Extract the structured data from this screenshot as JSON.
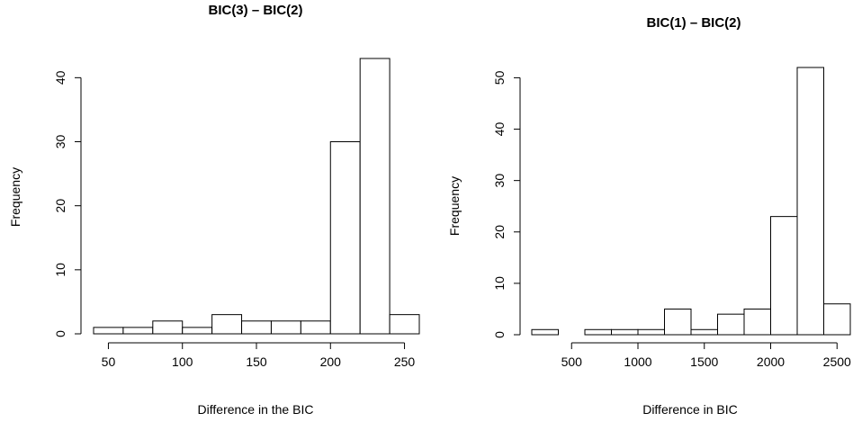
{
  "chart_data": [
    {
      "type": "bar",
      "title": "BIC(3) – BIC(2)",
      "xlabel": "Difference in the BIC",
      "ylabel": "Frequency",
      "bin_edges": [
        40,
        60,
        80,
        100,
        120,
        140,
        160,
        180,
        200,
        220,
        240,
        260
      ],
      "values": [
        1,
        1,
        2,
        1,
        3,
        2,
        2,
        2,
        30,
        43,
        3
      ],
      "xticks": [
        50,
        100,
        150,
        200,
        250
      ],
      "xtick_labels": [
        "50",
        "100",
        "150",
        "200",
        "250"
      ],
      "yticks": [
        0,
        10,
        20,
        30,
        40
      ],
      "ytick_labels": [
        "0",
        "10",
        "20",
        "30",
        "40"
      ],
      "xlim": [
        40,
        260
      ],
      "ylim": [
        0,
        43
      ],
      "grid": false
    },
    {
      "type": "bar",
      "title": "BIC(1) – BIC(2)",
      "xlabel": "Difference in BIC",
      "ylabel": "Frequency",
      "bin_edges": [
        200,
        400,
        600,
        800,
        1000,
        1200,
        1400,
        1600,
        1800,
        2000,
        2200,
        2400,
        2600
      ],
      "values": [
        1,
        0,
        1,
        1,
        1,
        5,
        1,
        4,
        5,
        23,
        52,
        6
      ],
      "xticks": [
        500,
        1000,
        1500,
        2000,
        2500
      ],
      "xtick_labels": [
        "500",
        "1000",
        "1500",
        "2000",
        "2500"
      ],
      "yticks": [
        0,
        10,
        20,
        30,
        40,
        50
      ],
      "ytick_labels": [
        "0",
        "10",
        "20",
        "30",
        "40",
        "50"
      ],
      "xlim": [
        200,
        2600
      ],
      "ylim": [
        0,
        52
      ],
      "grid": false
    }
  ]
}
